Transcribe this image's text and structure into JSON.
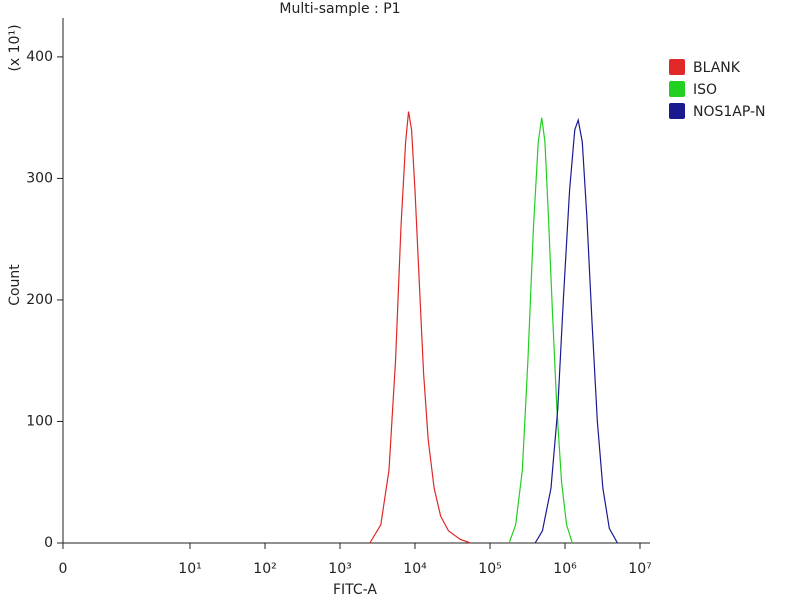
{
  "chart_data": {
    "type": "line",
    "title": "Multi-sample : P1",
    "xlabel": "FITC-A",
    "ylabel": "Count",
    "y_multiplier": "(x 10¹)",
    "xscale": "biexponential",
    "xlim": [
      0,
      10000000
    ],
    "xticks": [
      0,
      {
        "value": 10,
        "label": "10¹"
      },
      {
        "value": 100,
        "label": "10²"
      },
      {
        "value": 1000,
        "label": "10³"
      },
      {
        "value": 10000,
        "label": "10⁴"
      },
      {
        "value": 100000,
        "label": "10⁵"
      },
      {
        "value": 1000000,
        "label": "10⁶"
      },
      {
        "value": 10000000,
        "label": "10⁷"
      }
    ],
    "ylim": [
      0,
      432
    ],
    "yticks": [
      0,
      100,
      200,
      300,
      400
    ],
    "legend": "right",
    "series": [
      {
        "name": "BLANK",
        "color": "#e02828",
        "x": [
          2500,
          3500,
          4500,
          5500,
          6500,
          7500,
          8200,
          9000,
          10000,
          11500,
          13000,
          15000,
          18000,
          22000,
          28000,
          40000,
          55000
        ],
        "values": [
          0,
          15,
          60,
          150,
          260,
          330,
          355,
          340,
          290,
          210,
          140,
          85,
          45,
          22,
          10,
          3,
          0
        ]
      },
      {
        "name": "ISO",
        "color": "#22d022",
        "x": [
          180000,
          220000,
          270000,
          320000,
          380000,
          440000,
          490000,
          540000,
          600000,
          680000,
          780000,
          900000,
          1050000,
          1250000
        ],
        "values": [
          0,
          15,
          60,
          150,
          260,
          330,
          350,
          330,
          270,
          190,
          110,
          50,
          15,
          0
        ]
      },
      {
        "name": "NOS1AP-N",
        "color": "#1a1a90",
        "x": [
          400000,
          500000,
          650000,
          800000,
          950000,
          1150000,
          1350000,
          1500000,
          1700000,
          1950000,
          2300000,
          2700000,
          3200000,
          3900000,
          5000000
        ],
        "values": [
          0,
          10,
          45,
          110,
          200,
          290,
          340,
          348,
          330,
          270,
          180,
          100,
          45,
          12,
          0
        ]
      }
    ]
  }
}
